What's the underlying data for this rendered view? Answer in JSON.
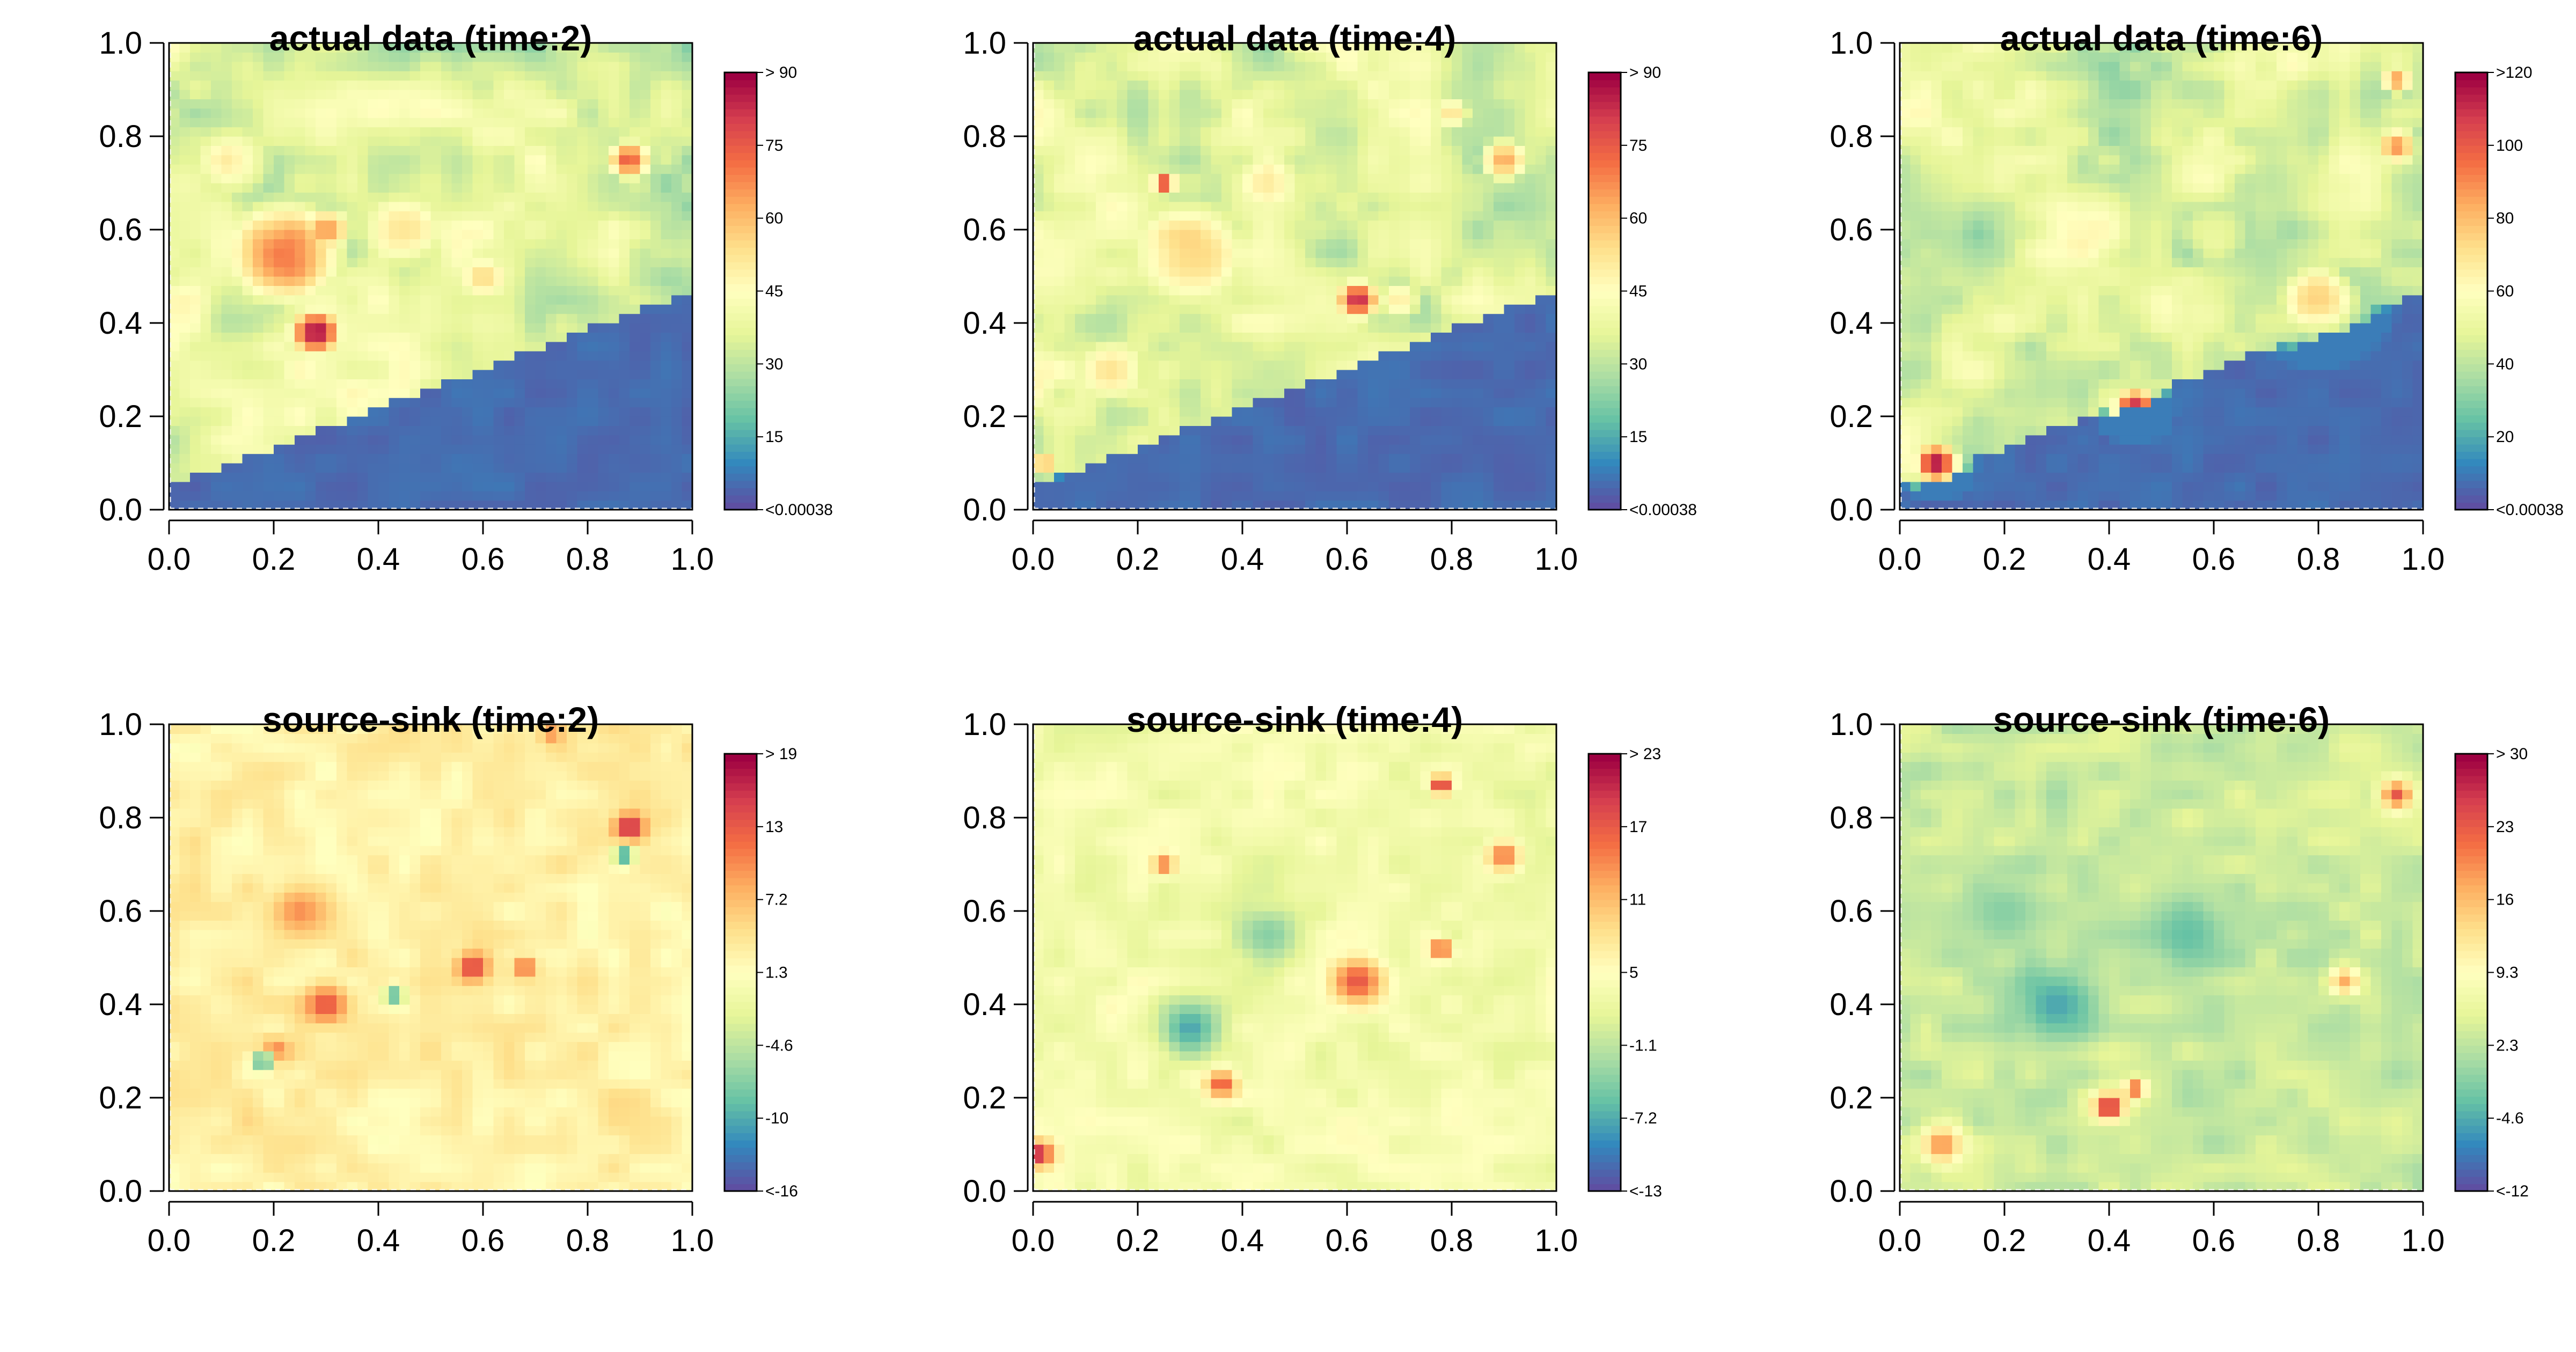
{
  "chart_data": [
    {
      "type": "heatmap",
      "title": "actual data (time:2)",
      "xlim": [
        0,
        1
      ],
      "ylim": [
        0,
        1
      ],
      "xticks": [
        "0.0",
        "0.2",
        "0.4",
        "0.6",
        "0.8",
        "1.0"
      ],
      "yticks": [
        "0.0",
        "0.2",
        "0.4",
        "0.6",
        "0.8",
        "1.0"
      ],
      "colorbar": {
        "labels": [
          "> 90",
          "75",
          "60",
          "45",
          "30",
          "15",
          "<0.00038"
        ],
        "min": 0.00038,
        "max": 90
      },
      "hotspots": [
        {
          "x": 0.22,
          "y": 0.55,
          "v": 0.75,
          "s": 0.14
        },
        {
          "x": 0.28,
          "y": 0.38,
          "v": 0.95,
          "s": 0.06
        },
        {
          "x": 0.3,
          "y": 0.6,
          "v": 0.7,
          "s": 0.06
        },
        {
          "x": 0.12,
          "y": 0.75,
          "v": 0.5,
          "s": 0.12
        },
        {
          "x": 0.45,
          "y": 0.6,
          "v": 0.55,
          "s": 0.12
        },
        {
          "x": 0.6,
          "y": 0.5,
          "v": 0.55,
          "s": 0.08
        },
        {
          "x": 0.88,
          "y": 0.75,
          "v": 0.8,
          "s": 0.05
        },
        {
          "x": 0.85,
          "y": 0.6,
          "v": 0.45,
          "s": 0.08
        },
        {
          "x": 0.55,
          "y": 0.85,
          "v": 0.35,
          "s": 0.1
        }
      ]
    },
    {
      "type": "heatmap",
      "title": "actual data (time:4)",
      "xlim": [
        0,
        1
      ],
      "ylim": [
        0,
        1
      ],
      "xticks": [
        "0.0",
        "0.2",
        "0.4",
        "0.6",
        "0.8",
        "1.0"
      ],
      "yticks": [
        "0.0",
        "0.2",
        "0.4",
        "0.6",
        "0.8",
        "1.0"
      ],
      "colorbar": {
        "labels": [
          "> 90",
          "75",
          "60",
          "45",
          "30",
          "15",
          "<0.00038"
        ],
        "min": 0.00038,
        "max": 90
      },
      "hotspots": [
        {
          "x": 0.3,
          "y": 0.55,
          "v": 0.6,
          "s": 0.16
        },
        {
          "x": 0.62,
          "y": 0.45,
          "v": 0.9,
          "s": 0.05
        },
        {
          "x": 0.25,
          "y": 0.7,
          "v": 0.85,
          "s": 0.03
        },
        {
          "x": 0.15,
          "y": 0.3,
          "v": 0.55,
          "s": 0.1
        },
        {
          "x": 0.45,
          "y": 0.7,
          "v": 0.5,
          "s": 0.12
        },
        {
          "x": 0.9,
          "y": 0.75,
          "v": 0.65,
          "s": 0.06
        },
        {
          "x": 0.8,
          "y": 0.85,
          "v": 0.55,
          "s": 0.05
        },
        {
          "x": 0.02,
          "y": 0.1,
          "v": 0.7,
          "s": 0.03
        },
        {
          "x": 0.7,
          "y": 0.45,
          "v": 0.55,
          "s": 0.06
        }
      ]
    },
    {
      "type": "heatmap",
      "title": "actual data (time:6)",
      "xlim": [
        0,
        1
      ],
      "ylim": [
        0,
        1
      ],
      "xticks": [
        "0.0",
        "0.2",
        "0.4",
        "0.6",
        "0.8",
        "1.0"
      ],
      "yticks": [
        "0.0",
        "0.2",
        "0.4",
        "0.6",
        "0.8",
        "1.0"
      ],
      "colorbar": {
        "labels": [
          ">120",
          "100",
          "80",
          "60",
          "40",
          "20",
          "<0.00038"
        ],
        "min": 0.00038,
        "max": 120
      },
      "hotspots": [
        {
          "x": 0.07,
          "y": 0.1,
          "v": 0.95,
          "s": 0.05
        },
        {
          "x": 0.45,
          "y": 0.22,
          "v": 0.9,
          "s": 0.05
        },
        {
          "x": 0.35,
          "y": 0.6,
          "v": 0.5,
          "s": 0.18
        },
        {
          "x": 0.8,
          "y": 0.45,
          "v": 0.6,
          "s": 0.1
        },
        {
          "x": 0.95,
          "y": 0.78,
          "v": 0.7,
          "s": 0.05
        },
        {
          "x": 0.95,
          "y": 0.92,
          "v": 0.7,
          "s": 0.04
        },
        {
          "x": 0.2,
          "y": 0.4,
          "v": 0.4,
          "s": 0.12
        },
        {
          "x": 0.6,
          "y": 0.6,
          "v": 0.4,
          "s": 0.12
        }
      ]
    },
    {
      "type": "heatmap",
      "title": "source-sink (time:2)",
      "xlim": [
        0,
        1
      ],
      "ylim": [
        0,
        1
      ],
      "xticks": [
        "0.0",
        "0.2",
        "0.4",
        "0.6",
        "0.8",
        "1.0"
      ],
      "yticks": [
        "0.0",
        "0.2",
        "0.4",
        "0.6",
        "0.8",
        "1.0"
      ],
      "colorbar": {
        "labels": [
          "> 19",
          "13",
          "7.2",
          "1.3",
          "-4.6",
          "-10",
          "<-16"
        ],
        "min": -16,
        "max": 19
      },
      "hotspots": [
        {
          "x": 0.88,
          "y": 0.78,
          "v": 0.95,
          "s": 0.03
        },
        {
          "x": 0.58,
          "y": 0.48,
          "v": 0.9,
          "s": 0.03
        },
        {
          "x": 0.3,
          "y": 0.4,
          "v": 0.85,
          "s": 0.04
        },
        {
          "x": 0.68,
          "y": 0.48,
          "v": 0.85,
          "s": 0.02
        },
        {
          "x": 0.2,
          "y": 0.3,
          "v": 0.8,
          "s": 0.03
        },
        {
          "x": 0.18,
          "y": 0.28,
          "v": 0.05,
          "s": 0.02
        },
        {
          "x": 0.87,
          "y": 0.72,
          "v": 0.1,
          "s": 0.02
        },
        {
          "x": 0.43,
          "y": 0.42,
          "v": 0.15,
          "s": 0.02
        },
        {
          "x": 0.25,
          "y": 0.6,
          "v": 0.75,
          "s": 0.05
        },
        {
          "x": 0.73,
          "y": 0.98,
          "v": 0.75,
          "s": 0.02
        }
      ]
    },
    {
      "type": "heatmap",
      "title": "source-sink (time:4)",
      "xlim": [
        0,
        1
      ],
      "ylim": [
        0,
        1
      ],
      "xticks": [
        "0.0",
        "0.2",
        "0.4",
        "0.6",
        "0.8",
        "1.0"
      ],
      "yticks": [
        "0.0",
        "0.2",
        "0.4",
        "0.6",
        "0.8",
        "1.0"
      ],
      "colorbar": {
        "labels": [
          "> 23",
          "17",
          "11",
          "5",
          "-1.1",
          "-7.2",
          "<-13"
        ],
        "min": -13,
        "max": 23
      },
      "hotspots": [
        {
          "x": 0.01,
          "y": 0.08,
          "v": 0.95,
          "s": 0.03
        },
        {
          "x": 0.78,
          "y": 0.87,
          "v": 0.95,
          "s": 0.02
        },
        {
          "x": 0.62,
          "y": 0.45,
          "v": 0.85,
          "s": 0.05
        },
        {
          "x": 0.36,
          "y": 0.23,
          "v": 0.85,
          "s": 0.03
        },
        {
          "x": 0.25,
          "y": 0.7,
          "v": 0.8,
          "s": 0.02
        },
        {
          "x": 0.9,
          "y": 0.72,
          "v": 0.8,
          "s": 0.03
        },
        {
          "x": 0.3,
          "y": 0.35,
          "v": 0.15,
          "s": 0.06
        },
        {
          "x": 0.45,
          "y": 0.55,
          "v": 0.25,
          "s": 0.07
        },
        {
          "x": 0.78,
          "y": 0.52,
          "v": 0.9,
          "s": 0.02
        }
      ]
    },
    {
      "type": "heatmap",
      "title": "source-sink (time:6)",
      "xlim": [
        0,
        1
      ],
      "ylim": [
        0,
        1
      ],
      "xticks": [
        "0.0",
        "0.2",
        "0.4",
        "0.6",
        "0.8",
        "1.0"
      ],
      "yticks": [
        "0.0",
        "0.2",
        "0.4",
        "0.6",
        "0.8",
        "1.0"
      ],
      "colorbar": {
        "labels": [
          "> 30",
          "23",
          "16",
          "9.3",
          "2.3",
          "-4.6",
          "<-12"
        ],
        "min": -12,
        "max": 30
      },
      "hotspots": [
        {
          "x": 0.4,
          "y": 0.18,
          "v": 0.95,
          "s": 0.03
        },
        {
          "x": 0.45,
          "y": 0.22,
          "v": 0.85,
          "s": 0.02
        },
        {
          "x": 0.95,
          "y": 0.85,
          "v": 0.85,
          "s": 0.03
        },
        {
          "x": 0.08,
          "y": 0.1,
          "v": 0.75,
          "s": 0.04
        },
        {
          "x": 0.3,
          "y": 0.4,
          "v": 0.15,
          "s": 0.08
        },
        {
          "x": 0.55,
          "y": 0.55,
          "v": 0.2,
          "s": 0.08
        },
        {
          "x": 0.2,
          "y": 0.6,
          "v": 0.25,
          "s": 0.08
        },
        {
          "x": 0.85,
          "y": 0.45,
          "v": 0.7,
          "s": 0.03
        }
      ]
    }
  ]
}
